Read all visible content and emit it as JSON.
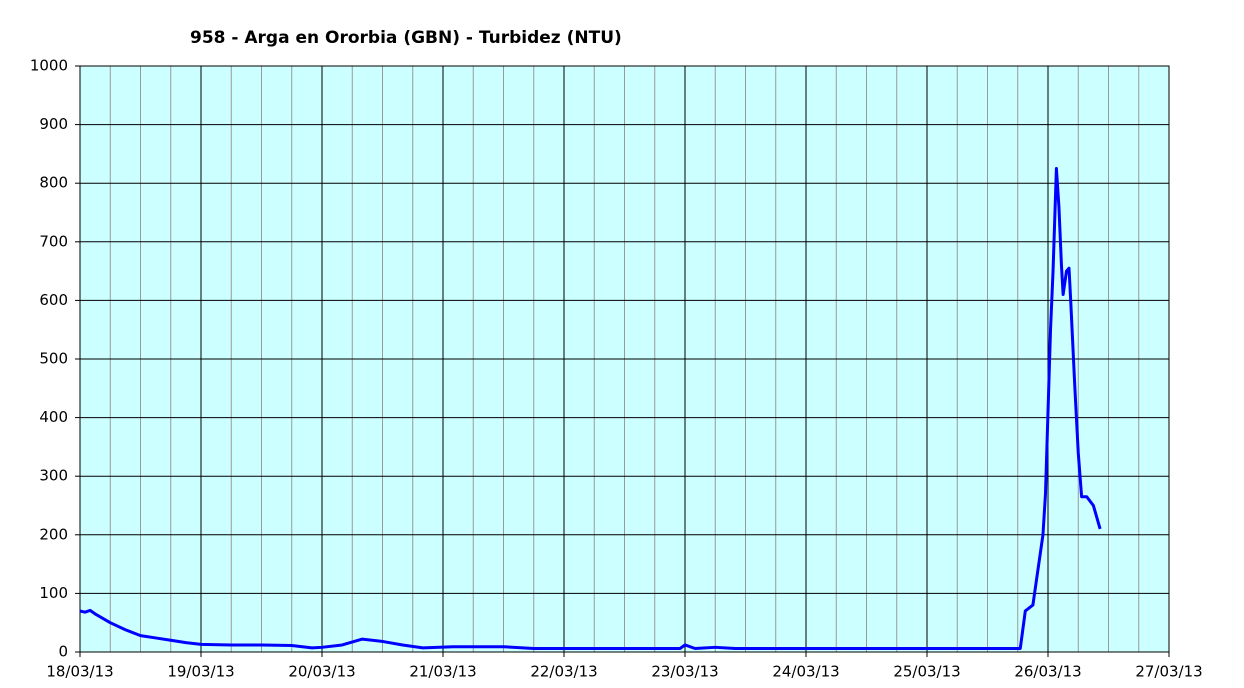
{
  "chart_data": {
    "type": "line",
    "title": "958 - Arga en Ororbia (GBN) - Turbidez (NTU)",
    "x": [
      "2013-03-18T00:00",
      "2013-03-18T01:00",
      "2013-03-18T02:00",
      "2013-03-18T03:00",
      "2013-03-18T06:00",
      "2013-03-18T09:00",
      "2013-03-18T12:00",
      "2013-03-18T15:00",
      "2013-03-18T18:00",
      "2013-03-18T21:00",
      "2013-03-19T00:00",
      "2013-03-19T06:00",
      "2013-03-19T12:00",
      "2013-03-19T18:00",
      "2013-03-19T22:00",
      "2013-03-20T00:00",
      "2013-03-20T04:00",
      "2013-03-20T08:00",
      "2013-03-20T12:00",
      "2013-03-20T16:00",
      "2013-03-20T20:00",
      "2013-03-21T02:00",
      "2013-03-21T12:00",
      "2013-03-21T18:00",
      "2013-03-22T12:00",
      "2013-03-22T23:00",
      "2013-03-23T00:00",
      "2013-03-23T02:00",
      "2013-03-23T06:00",
      "2013-03-23T10:00",
      "2013-03-24T12:00",
      "2013-03-25T18:30",
      "2013-03-25T19:30",
      "2013-03-25T21:00",
      "2013-03-25T22:00",
      "2013-03-25T23:00",
      "2013-03-25T23:30",
      "2013-03-26T00:30",
      "2013-03-26T01:00",
      "2013-03-26T01:40",
      "2013-03-26T02:10",
      "2013-03-26T02:40",
      "2013-03-26T03:00",
      "2013-03-26T03:40",
      "2013-03-26T04:10",
      "2013-03-26T04:30",
      "2013-03-26T05:20",
      "2013-03-26T06:00",
      "2013-03-26T06:40",
      "2013-03-26T07:40",
      "2013-03-26T09:00",
      "2013-03-26T10:20"
    ],
    "series": [
      {
        "name": "Turbidez",
        "color": "#0000ff",
        "values": [
          70,
          68,
          71,
          65,
          50,
          38,
          28,
          24,
          20,
          16,
          13,
          12,
          12,
          11,
          7,
          8,
          12,
          22,
          18,
          12,
          7,
          9,
          9,
          6,
          6,
          6,
          12,
          6,
          8,
          6,
          6,
          6,
          70,
          80,
          140,
          200,
          270,
          550,
          650,
          825,
          760,
          660,
          610,
          650,
          655,
          600,
          450,
          340,
          265,
          265,
          250,
          210
        ]
      }
    ],
    "xlim": [
      "2013-03-18T00:00",
      "2013-03-27T00:00"
    ],
    "xticks": [
      {
        "value": "2013-03-18T00:00",
        "label": "18/03/13"
      },
      {
        "value": "2013-03-19T00:00",
        "label": "19/03/13"
      },
      {
        "value": "2013-03-20T00:00",
        "label": "20/03/13"
      },
      {
        "value": "2013-03-21T00:00",
        "label": "21/03/13"
      },
      {
        "value": "2013-03-22T00:00",
        "label": "22/03/13"
      },
      {
        "value": "2013-03-23T00:00",
        "label": "23/03/13"
      },
      {
        "value": "2013-03-24T00:00",
        "label": "24/03/13"
      },
      {
        "value": "2013-03-25T00:00",
        "label": "25/03/13"
      },
      {
        "value": "2013-03-26T00:00",
        "label": "26/03/13"
      },
      {
        "value": "2013-03-27T00:00",
        "label": "27/03/13"
      }
    ],
    "ylim": [
      0,
      1000
    ],
    "yticks": [
      0,
      100,
      200,
      300,
      400,
      500,
      600,
      700,
      800,
      900,
      1000
    ],
    "grid": true
  }
}
